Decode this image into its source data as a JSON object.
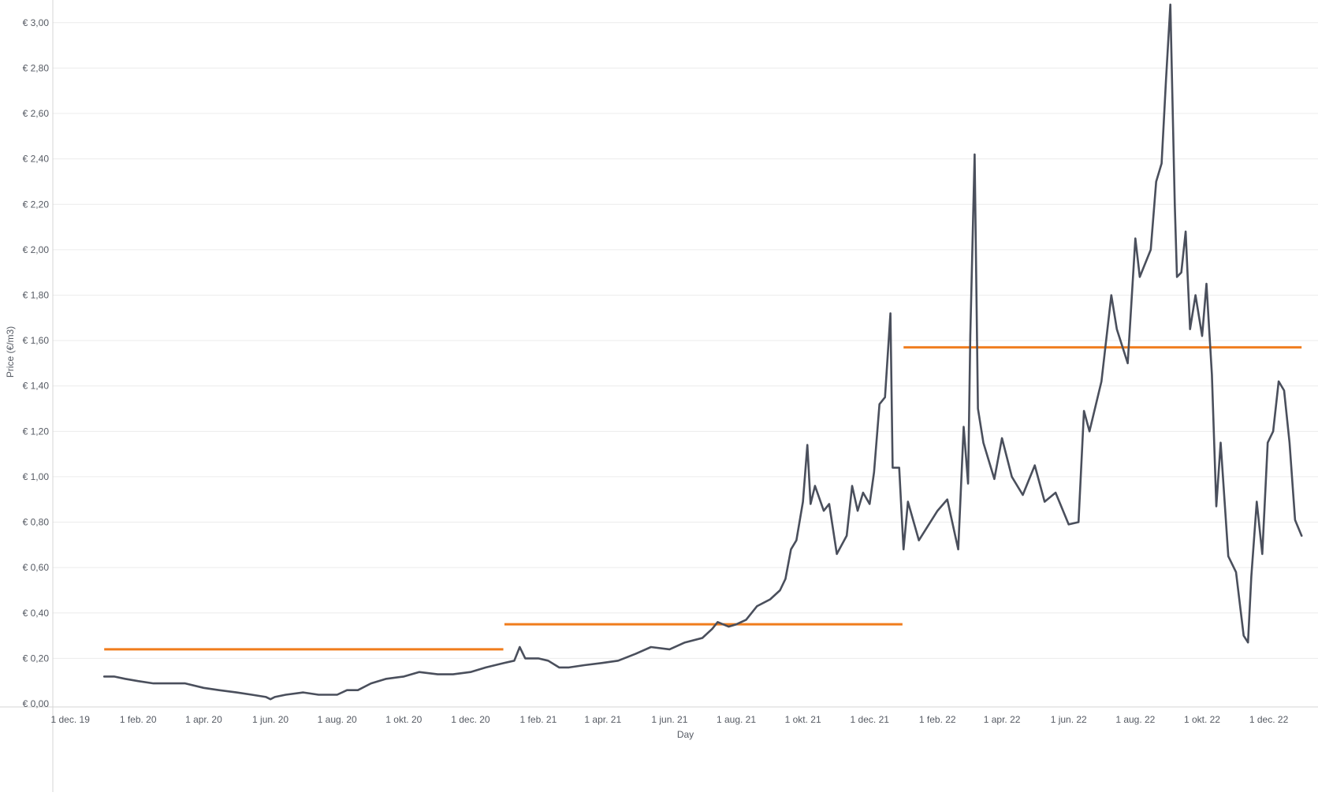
{
  "chart_data": {
    "type": "line",
    "xlabel": "Day",
    "ylabel": "Price (€/m3)",
    "x_range": [
      "2019-11-15",
      "2023-01-15"
    ],
    "y_range": [
      0,
      3.1
    ],
    "grid": true,
    "y_ticks": [
      {
        "value": 0.0,
        "label": "€ 0,00"
      },
      {
        "value": 0.2,
        "label": "€ 0,20"
      },
      {
        "value": 0.4,
        "label": "€ 0,40"
      },
      {
        "value": 0.6,
        "label": "€ 0,60"
      },
      {
        "value": 0.8,
        "label": "€ 0,80"
      },
      {
        "value": 1.0,
        "label": "€ 1,00"
      },
      {
        "value": 1.2,
        "label": "€ 1,20"
      },
      {
        "value": 1.4,
        "label": "€ 1,40"
      },
      {
        "value": 1.6,
        "label": "€ 1,60"
      },
      {
        "value": 1.8,
        "label": "€ 1,80"
      },
      {
        "value": 2.0,
        "label": "€ 2,00"
      },
      {
        "value": 2.2,
        "label": "€ 2,20"
      },
      {
        "value": 2.4,
        "label": "€ 2,40"
      },
      {
        "value": 2.6,
        "label": "€ 2,60"
      },
      {
        "value": 2.8,
        "label": "€ 2,80"
      },
      {
        "value": 3.0,
        "label": "€ 3,00"
      }
    ],
    "x_ticks": [
      {
        "date": "2019-12-01",
        "label": "1 dec. 19"
      },
      {
        "date": "2020-02-01",
        "label": "1 feb. 20"
      },
      {
        "date": "2020-04-01",
        "label": "1 apr. 20"
      },
      {
        "date": "2020-06-01",
        "label": "1 jun. 20"
      },
      {
        "date": "2020-08-01",
        "label": "1 aug. 20"
      },
      {
        "date": "2020-10-01",
        "label": "1 okt. 20"
      },
      {
        "date": "2020-12-01",
        "label": "1 dec. 20"
      },
      {
        "date": "2021-02-01",
        "label": "1 feb. 21"
      },
      {
        "date": "2021-04-01",
        "label": "1 apr. 21"
      },
      {
        "date": "2021-06-01",
        "label": "1 jun. 21"
      },
      {
        "date": "2021-08-01",
        "label": "1 aug. 21"
      },
      {
        "date": "2021-10-01",
        "label": "1 okt. 21"
      },
      {
        "date": "2021-12-01",
        "label": "1 dec. 21"
      },
      {
        "date": "2022-02-01",
        "label": "1 feb. 22"
      },
      {
        "date": "2022-04-01",
        "label": "1 apr. 22"
      },
      {
        "date": "2022-06-01",
        "label": "1 jun. 22"
      },
      {
        "date": "2022-08-01",
        "label": "1 aug. 22"
      },
      {
        "date": "2022-10-01",
        "label": "1 okt. 22"
      },
      {
        "date": "2022-12-01",
        "label": "1 dec. 22"
      }
    ],
    "series": [
      {
        "color": "#4a4f5c",
        "points": [
          [
            "2020-01-01",
            0.12
          ],
          [
            "2020-01-10",
            0.12
          ],
          [
            "2020-01-20",
            0.11
          ],
          [
            "2020-02-01",
            0.1
          ],
          [
            "2020-02-15",
            0.09
          ],
          [
            "2020-03-01",
            0.09
          ],
          [
            "2020-03-15",
            0.09
          ],
          [
            "2020-04-01",
            0.07
          ],
          [
            "2020-04-15",
            0.06
          ],
          [
            "2020-05-01",
            0.05
          ],
          [
            "2020-05-15",
            0.04
          ],
          [
            "2020-05-28",
            0.03
          ],
          [
            "2020-06-01",
            0.02
          ],
          [
            "2020-06-05",
            0.03
          ],
          [
            "2020-06-15",
            0.04
          ],
          [
            "2020-07-01",
            0.05
          ],
          [
            "2020-07-15",
            0.04
          ],
          [
            "2020-08-01",
            0.04
          ],
          [
            "2020-08-10",
            0.06
          ],
          [
            "2020-08-20",
            0.06
          ],
          [
            "2020-09-01",
            0.09
          ],
          [
            "2020-09-15",
            0.11
          ],
          [
            "2020-10-01",
            0.12
          ],
          [
            "2020-10-15",
            0.14
          ],
          [
            "2020-11-01",
            0.13
          ],
          [
            "2020-11-15",
            0.13
          ],
          [
            "2020-12-01",
            0.14
          ],
          [
            "2020-12-15",
            0.16
          ],
          [
            "2021-01-01",
            0.18
          ],
          [
            "2021-01-10",
            0.19
          ],
          [
            "2021-01-15",
            0.25
          ],
          [
            "2021-01-20",
            0.2
          ],
          [
            "2021-02-01",
            0.2
          ],
          [
            "2021-02-10",
            0.19
          ],
          [
            "2021-02-20",
            0.16
          ],
          [
            "2021-03-01",
            0.16
          ],
          [
            "2021-03-15",
            0.17
          ],
          [
            "2021-04-01",
            0.18
          ],
          [
            "2021-04-15",
            0.19
          ],
          [
            "2021-05-01",
            0.22
          ],
          [
            "2021-05-15",
            0.25
          ],
          [
            "2021-06-01",
            0.24
          ],
          [
            "2021-06-15",
            0.27
          ],
          [
            "2021-07-01",
            0.29
          ],
          [
            "2021-07-10",
            0.33
          ],
          [
            "2021-07-15",
            0.36
          ],
          [
            "2021-07-25",
            0.34
          ],
          [
            "2021-08-01",
            0.35
          ],
          [
            "2021-08-10",
            0.37
          ],
          [
            "2021-08-20",
            0.43
          ],
          [
            "2021-09-01",
            0.46
          ],
          [
            "2021-09-10",
            0.5
          ],
          [
            "2021-09-15",
            0.55
          ],
          [
            "2021-09-20",
            0.68
          ],
          [
            "2021-09-25",
            0.72
          ],
          [
            "2021-10-01",
            0.89
          ],
          [
            "2021-10-05",
            1.14
          ],
          [
            "2021-10-08",
            0.88
          ],
          [
            "2021-10-12",
            0.96
          ],
          [
            "2021-10-20",
            0.85
          ],
          [
            "2021-10-25",
            0.88
          ],
          [
            "2021-11-01",
            0.66
          ],
          [
            "2021-11-10",
            0.74
          ],
          [
            "2021-11-15",
            0.96
          ],
          [
            "2021-11-20",
            0.85
          ],
          [
            "2021-11-25",
            0.93
          ],
          [
            "2021-12-01",
            0.88
          ],
          [
            "2021-12-05",
            1.02
          ],
          [
            "2021-12-10",
            1.32
          ],
          [
            "2021-12-15",
            1.35
          ],
          [
            "2021-12-20",
            1.72
          ],
          [
            "2021-12-22",
            1.04
          ],
          [
            "2021-12-28",
            1.04
          ],
          [
            "2022-01-01",
            0.68
          ],
          [
            "2022-01-05",
            0.89
          ],
          [
            "2022-01-15",
            0.72
          ],
          [
            "2022-02-01",
            0.85
          ],
          [
            "2022-02-10",
            0.9
          ],
          [
            "2022-02-20",
            0.68
          ],
          [
            "2022-02-25",
            1.22
          ],
          [
            "2022-03-01",
            0.97
          ],
          [
            "2022-03-03",
            1.62
          ],
          [
            "2022-03-07",
            2.42
          ],
          [
            "2022-03-10",
            1.3
          ],
          [
            "2022-03-15",
            1.15
          ],
          [
            "2022-03-25",
            0.99
          ],
          [
            "2022-04-01",
            1.17
          ],
          [
            "2022-04-10",
            1.0
          ],
          [
            "2022-04-20",
            0.92
          ],
          [
            "2022-05-01",
            1.05
          ],
          [
            "2022-05-10",
            0.89
          ],
          [
            "2022-05-20",
            0.93
          ],
          [
            "2022-06-01",
            0.79
          ],
          [
            "2022-06-10",
            0.8
          ],
          [
            "2022-06-15",
            1.29
          ],
          [
            "2022-06-20",
            1.2
          ],
          [
            "2022-07-01",
            1.42
          ],
          [
            "2022-07-10",
            1.8
          ],
          [
            "2022-07-15",
            1.65
          ],
          [
            "2022-07-25",
            1.5
          ],
          [
            "2022-08-01",
            2.05
          ],
          [
            "2022-08-05",
            1.88
          ],
          [
            "2022-08-15",
            2.0
          ],
          [
            "2022-08-20",
            2.3
          ],
          [
            "2022-08-25",
            2.38
          ],
          [
            "2022-08-29",
            2.75
          ],
          [
            "2022-09-02",
            3.08
          ],
          [
            "2022-09-06",
            2.2
          ],
          [
            "2022-09-08",
            1.88
          ],
          [
            "2022-09-12",
            1.9
          ],
          [
            "2022-09-16",
            2.08
          ],
          [
            "2022-09-20",
            1.65
          ],
          [
            "2022-09-25",
            1.8
          ],
          [
            "2022-10-01",
            1.62
          ],
          [
            "2022-10-05",
            1.85
          ],
          [
            "2022-10-10",
            1.45
          ],
          [
            "2022-10-14",
            0.87
          ],
          [
            "2022-10-18",
            1.15
          ],
          [
            "2022-10-25",
            0.65
          ],
          [
            "2022-11-01",
            0.58
          ],
          [
            "2022-11-08",
            0.3
          ],
          [
            "2022-11-12",
            0.27
          ],
          [
            "2022-11-15",
            0.56
          ],
          [
            "2022-11-20",
            0.89
          ],
          [
            "2022-11-25",
            0.66
          ],
          [
            "2022-11-30",
            1.15
          ],
          [
            "2022-12-05",
            1.2
          ],
          [
            "2022-12-10",
            1.42
          ],
          [
            "2022-12-15",
            1.38
          ],
          [
            "2022-12-20",
            1.15
          ],
          [
            "2022-12-25",
            0.81
          ],
          [
            "2022-12-31",
            0.74
          ]
        ]
      }
    ],
    "reference_lines": [
      {
        "from": "2020-01-01",
        "to": "2020-12-31",
        "value": 0.24,
        "color": "#f07c1c"
      },
      {
        "from": "2021-01-01",
        "to": "2021-12-31",
        "value": 0.35,
        "color": "#f07c1c"
      },
      {
        "from": "2022-01-01",
        "to": "2022-12-31",
        "value": 1.57,
        "color": "#f07c1c"
      }
    ]
  }
}
